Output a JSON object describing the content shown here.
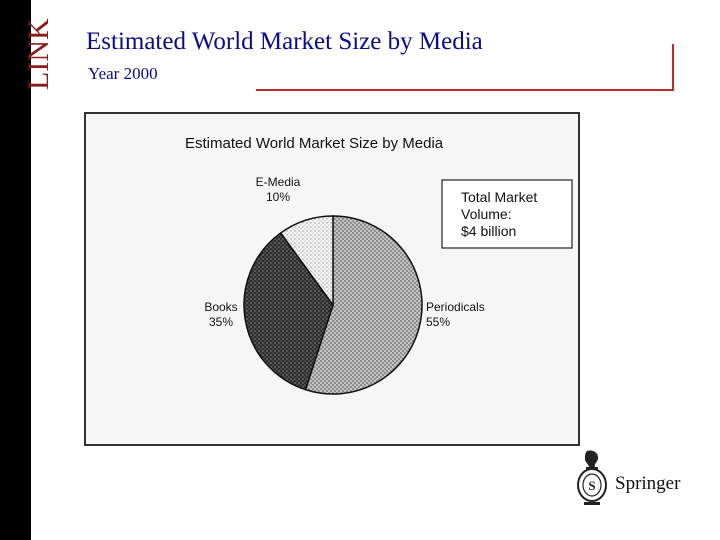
{
  "slide": {
    "title": "Estimated World Market Size by Media",
    "subtitle": "Year 2000",
    "side_logo_text": "LINK",
    "brand": "Springer",
    "accent_color": "#c0282d",
    "title_color": "#0a0a8a"
  },
  "chart_data": {
    "type": "pie",
    "title": "Estimated World Market Size by Media",
    "slices": [
      {
        "label": "Periodicals",
        "value": 55,
        "display": "55%",
        "pattern": "light-gray-dots"
      },
      {
        "label": "Books",
        "value": 35,
        "display": "35%",
        "pattern": "dark-gray-dots"
      },
      {
        "label": "E-Media",
        "value": 10,
        "display": "10%",
        "pattern": "white-dots"
      }
    ],
    "annotation": [
      "Total Market",
      "Volume:",
      "$4 billion"
    ]
  }
}
